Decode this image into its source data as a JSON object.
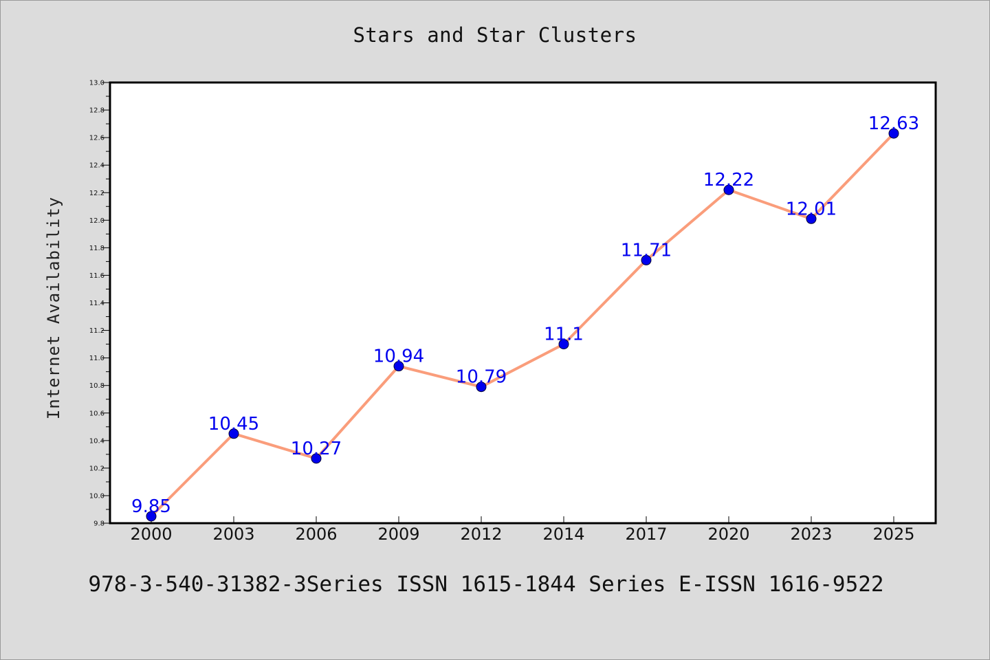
{
  "title": "Stars and Star Clusters",
  "footer": "978-3-540-31382-3Series ISSN 1615-1844 Series E-ISSN 1616-9522",
  "colors": {
    "background": "#dcdcdc",
    "plot_background": "#ffffff",
    "line": "#fa9d7b",
    "marker": "#0000ee",
    "data_label": "#0000ee"
  },
  "chart_data": {
    "type": "line",
    "title": "Stars and Star Clusters",
    "xlabel": "",
    "ylabel": "Internet Availability",
    "categories": [
      "2000",
      "2003",
      "2006",
      "2009",
      "2012",
      "2014",
      "2017",
      "2020",
      "2023",
      "2025"
    ],
    "series": [
      {
        "values": [
          9.85,
          10.45,
          10.27,
          10.94,
          10.79,
          11.1,
          11.71,
          12.22,
          12.01,
          12.63
        ],
        "data_labels": [
          "9.85",
          "10.45",
          "10.27",
          "10.94",
          "10.79",
          "11.1",
          "11.71",
          "12.22",
          "12.01",
          "12.63"
        ]
      }
    ],
    "ylim": [
      9.8,
      13.0
    ],
    "yticks": [
      "9.8",
      "10.0",
      "10.2",
      "10.4",
      "10.6",
      "10.8",
      "11.0",
      "11.2",
      "11.4",
      "11.6",
      "11.8",
      "12.0",
      "12.2",
      "12.4",
      "12.6",
      "12.8",
      "13.0"
    ],
    "grid": false,
    "legend": "none"
  }
}
